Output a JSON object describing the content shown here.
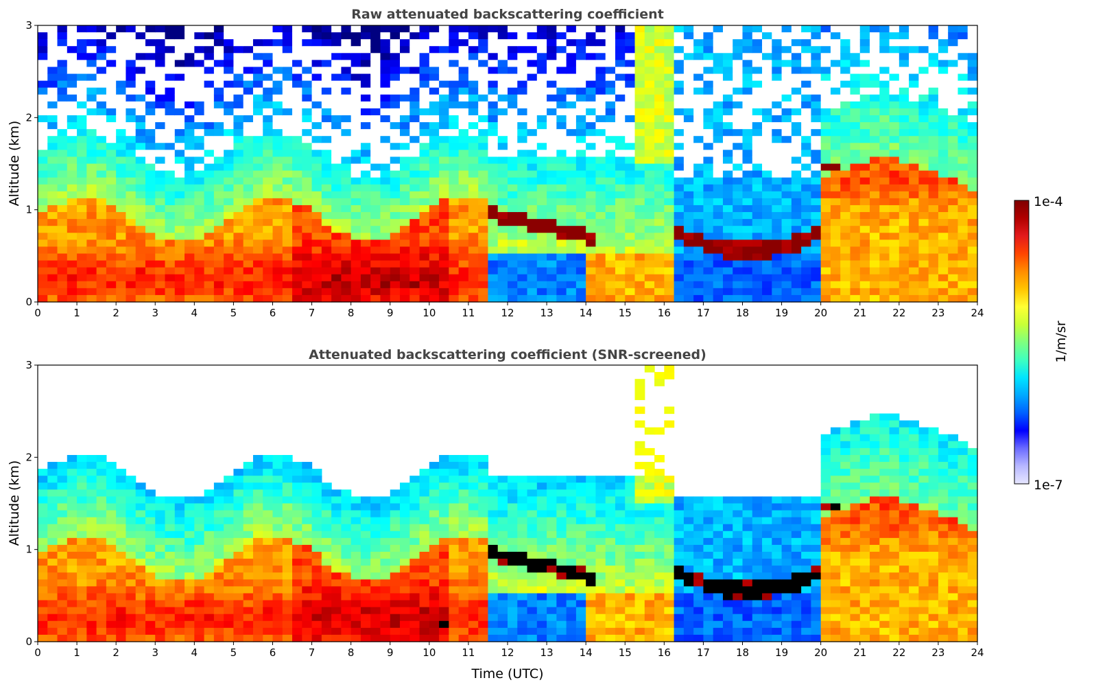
{
  "chart_data": [
    {
      "type": "heatmap",
      "title": "Raw attenuated backscattering coefficient",
      "xlabel": "",
      "ylabel": "Altitude (km)",
      "xlim": [
        0,
        24
      ],
      "ylim": [
        0,
        3
      ],
      "xticks": [
        "0",
        "1",
        "2",
        "3",
        "4",
        "5",
        "6",
        "7",
        "8",
        "9",
        "10",
        "11",
        "12",
        "13",
        "14",
        "15",
        "16",
        "17",
        "18",
        "19",
        "20",
        "21",
        "22",
        "23",
        "24"
      ],
      "yticks": [
        "0",
        "1",
        "2",
        "3"
      ],
      "screened": false,
      "features": [
        {
          "name": "boundary layer aerosol",
          "x": [
            0,
            11.6
          ],
          "y": [
            0,
            1.0
          ],
          "level": "high"
        },
        {
          "name": "cloud layer",
          "x": [
            11.6,
            14.3
          ],
          "y": [
            0.6,
            1.0
          ],
          "level": "saturated"
        },
        {
          "name": "cloud layer",
          "x": [
            16.3,
            20.0
          ],
          "y": [
            0.5,
            0.9
          ],
          "level": "saturated"
        },
        {
          "name": "elevated cloud",
          "x": [
            19.9,
            20.6
          ],
          "y": [
            1.4,
            1.5
          ],
          "level": "saturated"
        },
        {
          "name": "aerosol plume",
          "x": [
            21.0,
            24.0
          ],
          "y": [
            0,
            1.7
          ],
          "level": "high"
        }
      ]
    },
    {
      "type": "heatmap",
      "title": "Attenuated backscattering coefficient (SNR-screened)",
      "xlabel": "Time (UTC)",
      "ylabel": "Altitude (km)",
      "xlim": [
        0,
        24
      ],
      "ylim": [
        0,
        3
      ],
      "xticks": [
        "0",
        "1",
        "2",
        "3",
        "4",
        "5",
        "6",
        "7",
        "8",
        "9",
        "10",
        "11",
        "12",
        "13",
        "14",
        "15",
        "16",
        "17",
        "18",
        "19",
        "20",
        "21",
        "22",
        "23",
        "24"
      ],
      "yticks": [
        "0",
        "1",
        "2",
        "3"
      ],
      "screened": true,
      "features": [
        {
          "name": "boundary layer aerosol",
          "x": [
            0,
            11.6
          ],
          "y": [
            0,
            1.0
          ],
          "level": "high"
        },
        {
          "name": "cloud layer",
          "x": [
            11.6,
            14.3
          ],
          "y": [
            0.6,
            1.0
          ],
          "level": "saturated"
        },
        {
          "name": "cloud layer",
          "x": [
            16.3,
            20.0
          ],
          "y": [
            0.5,
            0.9
          ],
          "level": "saturated"
        },
        {
          "name": "elevated cloud",
          "x": [
            19.9,
            20.6
          ],
          "y": [
            1.4,
            1.5
          ],
          "level": "saturated"
        },
        {
          "name": "aerosol plume",
          "x": [
            21.0,
            24.0
          ],
          "y": [
            0,
            1.7
          ],
          "level": "high"
        }
      ]
    }
  ],
  "colorbar": {
    "label": "1/m/sr",
    "max_label": "1e-4",
    "min_label": "1e-7",
    "colors": [
      "#7f0000",
      "#b00000",
      "#e31a1c",
      "#ff4500",
      "#ff8c00",
      "#ffc400",
      "#ffff33",
      "#c8ff37",
      "#7fff7f",
      "#3fffbf",
      "#00e5ff",
      "#00a8ff",
      "#0060ff",
      "#0000ff",
      "#6b6bff",
      "#b8b8ff",
      "#e6e6ff"
    ]
  }
}
